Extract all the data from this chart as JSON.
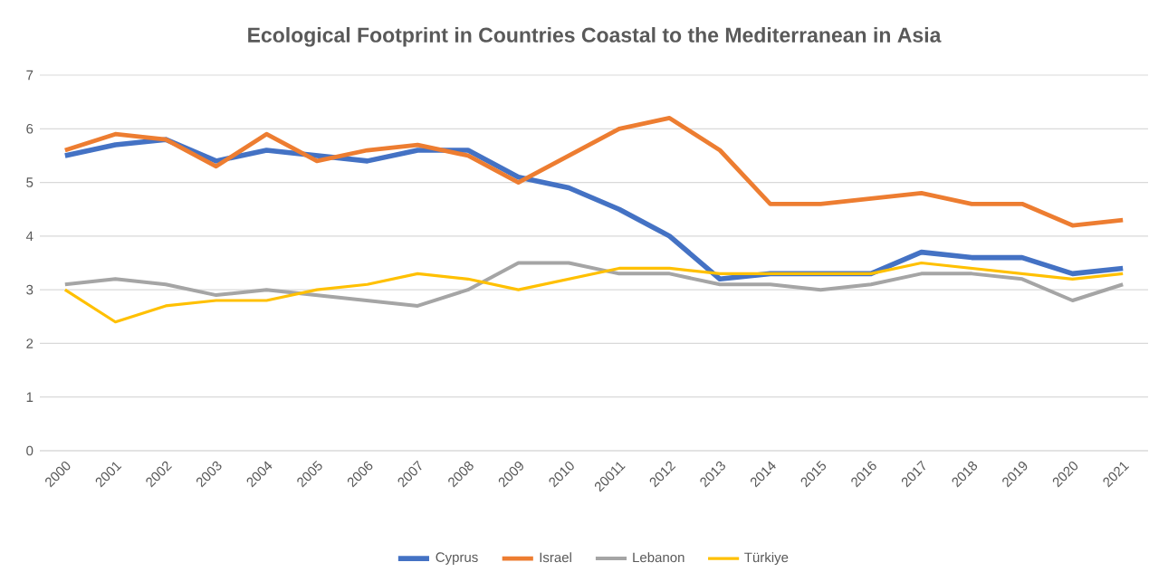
{
  "chart_data": {
    "type": "line",
    "title": "Ecological Footprint in Countries Coastal to the Mediterranean in Asia",
    "categories": [
      "2000",
      "2001",
      "2002",
      "2003",
      "2004",
      "2005",
      "2006",
      "2007",
      "2008",
      "2009",
      "2010",
      "20011",
      "2012",
      "2013",
      "2014",
      "2015",
      "2016",
      "2017",
      "2018",
      "2019",
      "2020",
      "2021"
    ],
    "series": [
      {
        "name": "Cyprus",
        "color": "#4472c4",
        "values": [
          5.5,
          5.7,
          5.8,
          5.4,
          5.6,
          5.5,
          5.4,
          5.6,
          5.6,
          5.1,
          4.9,
          4.5,
          4.0,
          3.2,
          3.3,
          3.3,
          3.3,
          3.7,
          3.6,
          3.6,
          3.3,
          3.4
        ]
      },
      {
        "name": "Israel",
        "color": "#ed7d31",
        "values": [
          5.6,
          5.9,
          5.8,
          5.3,
          5.9,
          5.4,
          5.6,
          5.7,
          5.5,
          5.0,
          5.5,
          6.0,
          6.2,
          5.6,
          4.6,
          4.6,
          4.7,
          4.8,
          4.6,
          4.6,
          4.2,
          4.3
        ]
      },
      {
        "name": "Lebanon",
        "color": "#a5a5a5",
        "values": [
          3.1,
          3.2,
          3.1,
          2.9,
          3.0,
          2.9,
          2.8,
          2.7,
          3.0,
          3.5,
          3.5,
          3.3,
          3.3,
          3.1,
          3.1,
          3.0,
          3.1,
          3.3,
          3.3,
          3.2,
          2.8,
          3.1
        ]
      },
      {
        "name": "Türkiye",
        "color": "#ffc000",
        "values": [
          3.0,
          2.4,
          2.7,
          2.8,
          2.8,
          3.0,
          3.1,
          3.3,
          3.2,
          3.0,
          3.2,
          3.4,
          3.4,
          3.3,
          3.3,
          3.3,
          3.3,
          3.5,
          3.4,
          3.3,
          3.2,
          3.3
        ]
      }
    ],
    "ylim": [
      0,
      7
    ],
    "yticks": [
      0,
      1,
      2,
      3,
      4,
      5,
      6,
      7
    ],
    "grid": "y",
    "legend": "bottom",
    "marker": "none",
    "line_style": "solid"
  }
}
